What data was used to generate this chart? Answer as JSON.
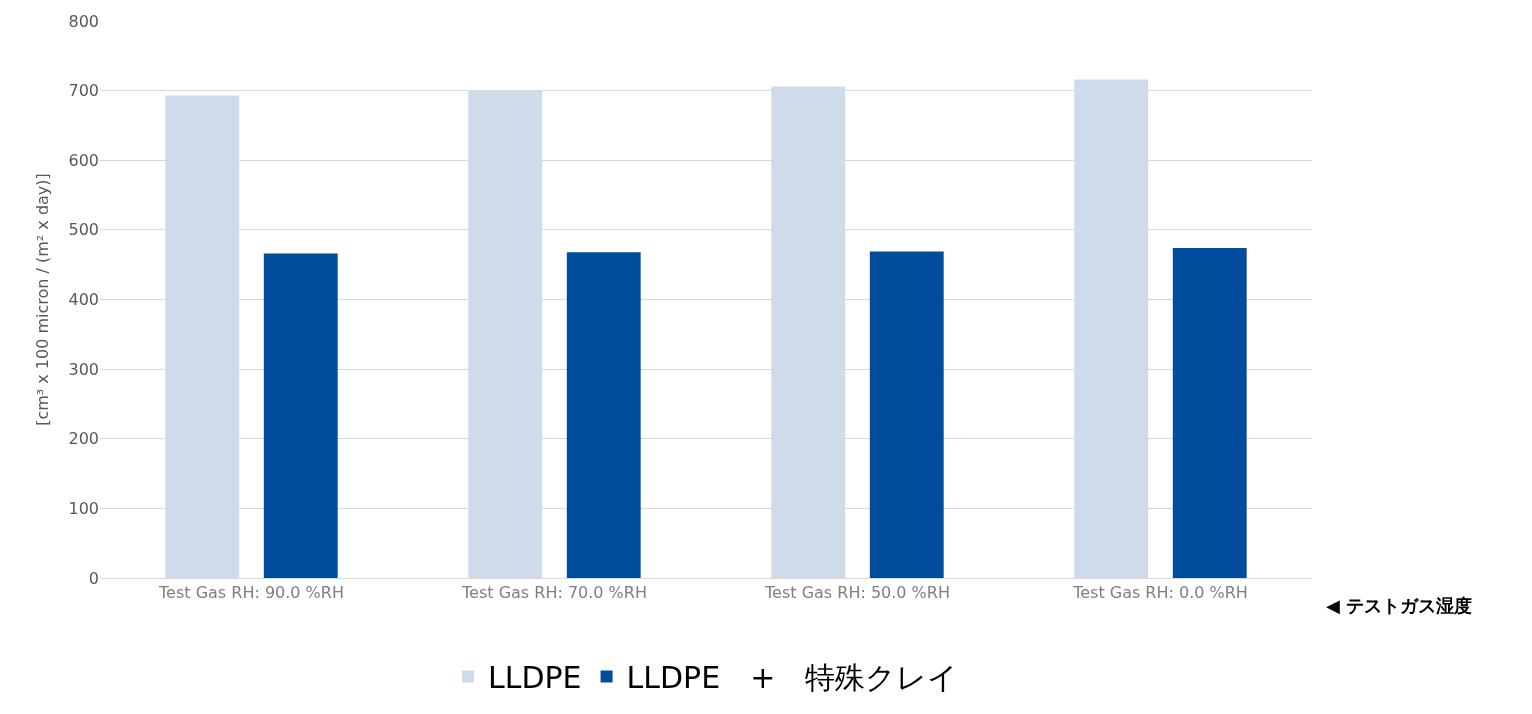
{
  "chart_data": {
    "type": "bar",
    "ylabel": "[cm³ x 100 micron / (m² x day)]",
    "categories": [
      "Test Gas RH: 90.0 %RH",
      "Test Gas RH: 70.0 %RH",
      "Test Gas RH: 50.0 %RH",
      "Test Gas RH: 0.0 %RH"
    ],
    "series": [
      {
        "name": "LLDPE",
        "color": "#cddbea",
        "values": [
          693,
          700,
          706,
          716
        ]
      },
      {
        "name": "LLDPE　+　特殊クレイ",
        "color": "#004c9d",
        "values": [
          466,
          468,
          469,
          474
        ]
      }
    ],
    "ylim": [
      0,
      800
    ],
    "yticks": [
      0,
      100,
      200,
      300,
      400,
      500,
      600,
      700,
      800
    ],
    "grid": "y",
    "legend": "bottom",
    "annotations": [
      "◀ テストガス湿度"
    ]
  }
}
